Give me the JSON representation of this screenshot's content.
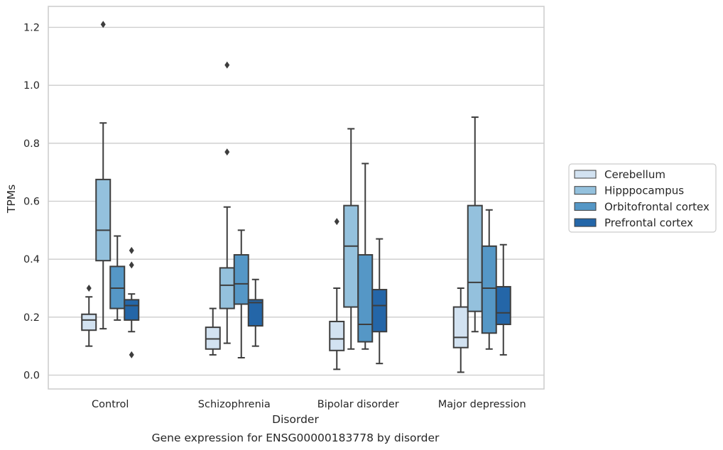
{
  "chart_data": {
    "type": "boxplot",
    "title": "Gene expression for ENSG00000183778 by disorder",
    "xlabel": "Disorder",
    "ylabel": "TPMs",
    "ylim": [
      -0.05,
      1.27
    ],
    "yticks": [
      0.0,
      0.2,
      0.4,
      0.6,
      0.8,
      1.0,
      1.2
    ],
    "ytick_labels": [
      "0.0",
      "0.2",
      "0.4",
      "0.6",
      "0.8",
      "1.0",
      "1.2"
    ],
    "grid": "horizontal",
    "legend_placement": "right",
    "categories": [
      "Control",
      "Schizophrenia",
      "Bipolar disorder",
      "Major depression"
    ],
    "series": [
      {
        "name": "Cerebellum",
        "color": "#d2e2f1",
        "boxes": [
          {
            "whislo": 0.1,
            "q1": 0.155,
            "med": 0.19,
            "q3": 0.21,
            "whishi": 0.27,
            "fliers": [
              0.3
            ]
          },
          {
            "whislo": 0.07,
            "q1": 0.09,
            "med": 0.125,
            "q3": 0.165,
            "whishi": 0.23,
            "fliers": []
          },
          {
            "whislo": 0.02,
            "q1": 0.085,
            "med": 0.125,
            "q3": 0.185,
            "whishi": 0.3,
            "fliers": [
              0.53
            ]
          },
          {
            "whislo": 0.01,
            "q1": 0.095,
            "med": 0.13,
            "q3": 0.235,
            "whishi": 0.3,
            "fliers": []
          }
        ]
      },
      {
        "name": "Hipppocampus",
        "color": "#94c1dd",
        "boxes": [
          {
            "whislo": 0.16,
            "q1": 0.395,
            "med": 0.5,
            "q3": 0.675,
            "whishi": 0.87,
            "fliers": [
              1.21
            ]
          },
          {
            "whislo": 0.11,
            "q1": 0.23,
            "med": 0.31,
            "q3": 0.37,
            "whishi": 0.58,
            "fliers": [
              0.77,
              1.07
            ]
          },
          {
            "whislo": 0.09,
            "q1": 0.235,
            "med": 0.445,
            "q3": 0.585,
            "whishi": 0.85,
            "fliers": []
          },
          {
            "whislo": 0.15,
            "q1": 0.22,
            "med": 0.32,
            "q3": 0.585,
            "whishi": 0.89,
            "fliers": []
          }
        ]
      },
      {
        "name": "Orbitofrontal cortex",
        "color": "#5597c6",
        "boxes": [
          {
            "whislo": 0.19,
            "q1": 0.23,
            "med": 0.3,
            "q3": 0.375,
            "whishi": 0.48,
            "fliers": []
          },
          {
            "whislo": 0.06,
            "q1": 0.245,
            "med": 0.315,
            "q3": 0.415,
            "whishi": 0.5,
            "fliers": []
          },
          {
            "whislo": 0.09,
            "q1": 0.115,
            "med": 0.175,
            "q3": 0.415,
            "whishi": 0.73,
            "fliers": []
          },
          {
            "whislo": 0.09,
            "q1": 0.145,
            "med": 0.3,
            "q3": 0.445,
            "whishi": 0.57,
            "fliers": []
          }
        ]
      },
      {
        "name": "Prefrontal cortex",
        "color": "#2466a8",
        "boxes": [
          {
            "whislo": 0.15,
            "q1": 0.19,
            "med": 0.24,
            "q3": 0.26,
            "whishi": 0.28,
            "fliers": [
              0.07,
              0.38,
              0.43
            ]
          },
          {
            "whislo": 0.1,
            "q1": 0.17,
            "med": 0.25,
            "q3": 0.26,
            "whishi": 0.33,
            "fliers": []
          },
          {
            "whislo": 0.04,
            "q1": 0.15,
            "med": 0.24,
            "q3": 0.295,
            "whishi": 0.47,
            "fliers": []
          },
          {
            "whislo": 0.07,
            "q1": 0.175,
            "med": 0.215,
            "q3": 0.305,
            "whishi": 0.45,
            "fliers": []
          }
        ]
      }
    ]
  }
}
